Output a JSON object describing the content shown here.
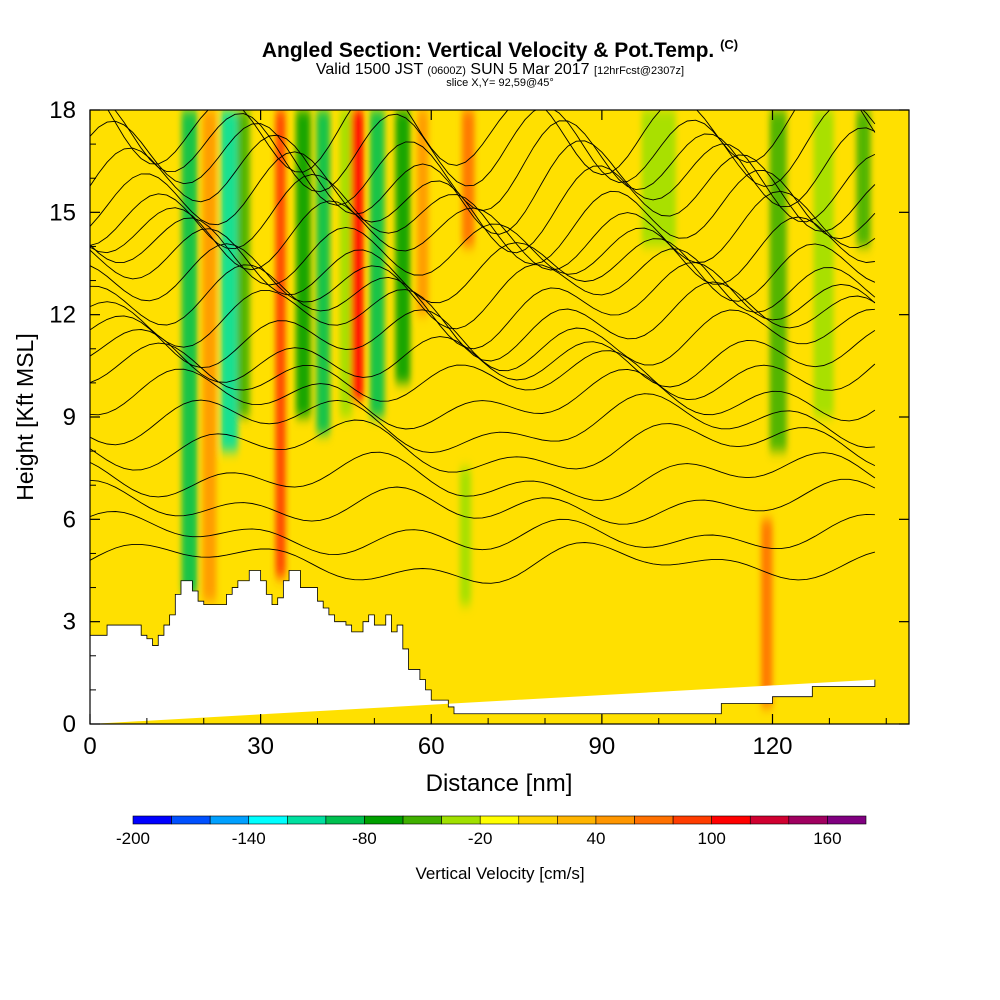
{
  "title": {
    "main": "Angled Section: Vertical Velocity & Pot.Temp.",
    "main_suffix": "(C)",
    "valid_prefix": "Valid 1500 JST",
    "valid_z": "(0600Z)",
    "valid_date": "SUN 5 Mar 2017",
    "valid_fcst": "[12hrFcst@2307z]",
    "slice": "slice X,Y= 92,59@45°"
  },
  "chart_data": {
    "type": "heatmap",
    "xlabel": "Distance [nm]",
    "ylabel": "Height [Kft MSL]",
    "xlim": [
      0,
      144
    ],
    "ylim": [
      0,
      18
    ],
    "xticks": [
      "0",
      "30",
      "60",
      "90",
      "120"
    ],
    "xtick_values": [
      0,
      30,
      60,
      90,
      120
    ],
    "yticks": [
      "0",
      "3",
      "6",
      "9",
      "12",
      "15",
      "18"
    ],
    "ytick_values": [
      0,
      3,
      6,
      9,
      12,
      15,
      18
    ],
    "colorbar": {
      "label": "Vertical Velocity [cm/s]",
      "min": -200,
      "max": 180,
      "step": 20,
      "tick_labels": [
        "-200",
        "-140",
        "-80",
        "-20",
        "40",
        "100",
        "160"
      ],
      "tick_values": [
        -200,
        -140,
        -80,
        -20,
        40,
        100,
        160
      ],
      "colors": [
        "#0000ff",
        "#0050ff",
        "#00a0ff",
        "#00ffff",
        "#00e0a0",
        "#00c050",
        "#00a000",
        "#40b000",
        "#a0e000",
        "#ffff00",
        "#ffd700",
        "#ffb400",
        "#ff9600",
        "#ff7000",
        "#ff3c00",
        "#ff0000",
        "#d00030",
        "#a00060",
        "#800080"
      ]
    },
    "terrain_profile": {
      "x": [
        0,
        3,
        3,
        9,
        9,
        10,
        10,
        11,
        11,
        12,
        12,
        13,
        13,
        14,
        14,
        15,
        15,
        16,
        16,
        17,
        17,
        18,
        18,
        19,
        19,
        20,
        20,
        24,
        24,
        25,
        25,
        26,
        26,
        28,
        28,
        30,
        30,
        31,
        31,
        32,
        32,
        33,
        33,
        34,
        34,
        35,
        35,
        36,
        36,
        37,
        37,
        40,
        40,
        41,
        41,
        42,
        42,
        43,
        43,
        45,
        45,
        46,
        46,
        48,
        48,
        49,
        49,
        50,
        50,
        52,
        52,
        53,
        53,
        54,
        54,
        55,
        55,
        56,
        56,
        58,
        58,
        59,
        59,
        60,
        60,
        63,
        63,
        64,
        64,
        65,
        65,
        66,
        66,
        67,
        67,
        81,
        81,
        87,
        87,
        91,
        91,
        96,
        96,
        103,
        103,
        111,
        111,
        120,
        120,
        127,
        127,
        138,
        138,
        144
      ],
      "y": [
        2.6,
        2.6,
        2.9,
        2.9,
        2.6,
        2.6,
        2.5,
        2.5,
        2.3,
        2.3,
        2.6,
        2.6,
        2.9,
        2.9,
        3.2,
        3.2,
        3.8,
        3.8,
        4.2,
        4.2,
        4.2,
        4.2,
        3.9,
        3.9,
        3.6,
        3.6,
        3.5,
        3.5,
        3.8,
        3.8,
        4.0,
        4.0,
        4.2,
        4.2,
        4.5,
        4.5,
        4.2,
        4.2,
        3.8,
        3.8,
        3.5,
        3.5,
        3.7,
        3.7,
        4.2,
        4.2,
        4.5,
        4.5,
        4.5,
        4.5,
        4.0,
        4.0,
        3.6,
        3.6,
        3.4,
        3.4,
        3.2,
        3.2,
        3.0,
        3.0,
        2.9,
        2.9,
        2.7,
        2.7,
        3.0,
        3.0,
        3.2,
        3.2,
        2.9,
        2.9,
        3.2,
        3.2,
        2.7,
        2.7,
        2.9,
        2.9,
        2.2,
        2.2,
        1.6,
        1.6,
        1.3,
        1.3,
        1.0,
        1.0,
        0.7,
        0.7,
        0.5,
        0.5,
        0.3,
        0.3,
        0.3,
        0.3,
        0.3,
        0.3,
        0.3,
        0.3,
        0.3,
        0.3,
        0.3,
        0.3,
        0.3,
        0.3,
        0.3,
        0.3,
        0.3,
        0.3,
        0.6,
        0.6,
        0.8,
        0.8,
        1.1,
        1.1,
        1.3
      ]
    },
    "velocity_features": [
      {
        "x": 17.5,
        "y0": 3.8,
        "y1": 18,
        "width": 2.8,
        "value": -90
      },
      {
        "x": 21,
        "y0": 3.6,
        "y1": 18,
        "width": 2.4,
        "value": 50
      },
      {
        "x": 24.5,
        "y0": 8,
        "y1": 18,
        "width": 3,
        "value": -110
      },
      {
        "x": 27,
        "y0": 9,
        "y1": 18,
        "width": 2.2,
        "value": -50
      },
      {
        "x": 33.5,
        "y0": 4.3,
        "y1": 18,
        "width": 1.8,
        "value": 80
      },
      {
        "x": 37.5,
        "y0": 9,
        "y1": 18,
        "width": 2.6,
        "value": -80
      },
      {
        "x": 41,
        "y0": 8.5,
        "y1": 18,
        "width": 2.4,
        "value": -90
      },
      {
        "x": 45,
        "y0": 9,
        "y1": 18,
        "width": 2.2,
        "value": -40
      },
      {
        "x": 47,
        "y0": 9.5,
        "y1": 18,
        "width": 2.2,
        "value": 100
      },
      {
        "x": 50.5,
        "y0": 9,
        "y1": 18,
        "width": 2.6,
        "value": -90
      },
      {
        "x": 55,
        "y0": 10,
        "y1": 18,
        "width": 2.6,
        "value": -80
      },
      {
        "x": 58.5,
        "y0": 12,
        "y1": 18,
        "width": 2.0,
        "value": 40
      },
      {
        "x": 66,
        "y0": 3.5,
        "y1": 7.5,
        "width": 2.0,
        "value": -30
      },
      {
        "x": 66.5,
        "y0": 14,
        "y1": 18,
        "width": 2.2,
        "value": 60
      },
      {
        "x": 100,
        "y0": 14,
        "y1": 18,
        "width": 6,
        "value": -30
      },
      {
        "x": 119,
        "y0": 0.5,
        "y1": 6,
        "width": 2.0,
        "value": 70
      },
      {
        "x": 121,
        "y0": 8,
        "y1": 18,
        "width": 3,
        "value": -60
      },
      {
        "x": 129,
        "y0": 9,
        "y1": 18,
        "width": 3.5,
        "value": -40
      },
      {
        "x": 136,
        "y0": 14,
        "y1": 18,
        "width": 2.5,
        "value": -60
      }
    ],
    "isentrope_heights": [
      4.8,
      5.6,
      6.5,
      7.3,
      8.2,
      8.9,
      9.6,
      10.3,
      10.8,
      11.4,
      12.0,
      12.5,
      13.0,
      13.5,
      14.0,
      14.5,
      15.0,
      15.5,
      16.0,
      16.5,
      17.0,
      17.5
    ]
  }
}
